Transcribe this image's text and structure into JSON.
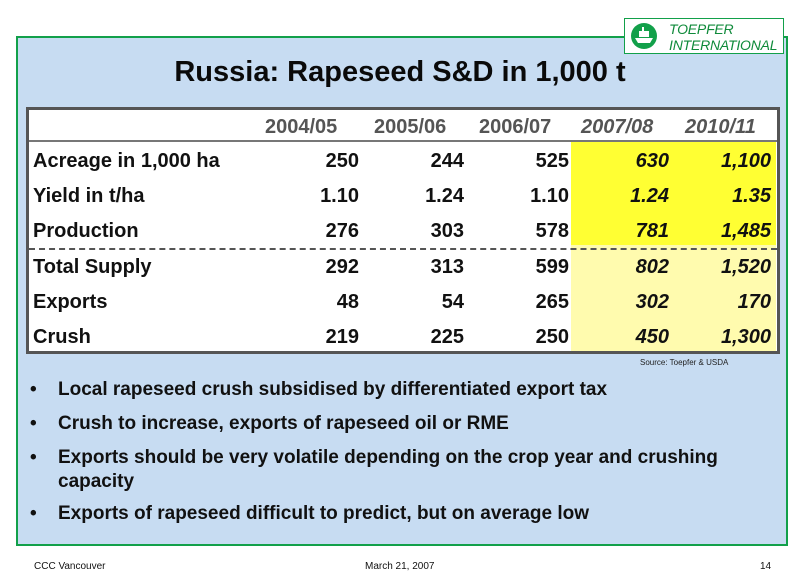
{
  "logo": {
    "line1": "TOEPFER",
    "line2": "INTERNATIONAL"
  },
  "title": "Russia: Rapeseed  S&D in 1,000 t",
  "table": {
    "headers": [
      "2004/05",
      "2005/06",
      "2006/07",
      "2007/08",
      "2010/11"
    ],
    "rows": [
      {
        "label": "Acreage in 1,000 ha",
        "values": [
          "250",
          "244",
          "525",
          "630",
          "1,100"
        ]
      },
      {
        "label": "Yield in t/ha",
        "values": [
          "1.10",
          "1.24",
          "1.10",
          "1.24",
          "1.35"
        ]
      },
      {
        "label": "Production",
        "values": [
          "276",
          "303",
          "578",
          "781",
          "1,485"
        ]
      },
      {
        "label": "Total Supply",
        "values": [
          "292",
          "313",
          "599",
          "802",
          "1,520"
        ]
      },
      {
        "label": "Exports",
        "values": [
          "48",
          "54",
          "265",
          "302",
          "170"
        ]
      },
      {
        "label": "Crush",
        "values": [
          "219",
          "225",
          "250",
          "450",
          "1,300"
        ]
      }
    ],
    "highlight_colors": {
      "strong": "#ffff33",
      "light": "#fffbae"
    }
  },
  "source": "Source: Toepfer & USDA",
  "bullets": [
    "Local rapeseed crush subsidised by differentiated export tax",
    "Crush to increase, exports of rapeseed oil or RME",
    "Exports should be very volatile depending on the crop year and crushing capacity",
    "Exports of rapeseed difficult to predict, but on average low"
  ],
  "footer": {
    "left": "CCC Vancouver",
    "center": "March 21, 2007",
    "page": "14"
  },
  "colors": {
    "frame_bg": "#c7dcf2",
    "frame_border": "#12a04a",
    "logo_green": "#0f8a3a"
  }
}
